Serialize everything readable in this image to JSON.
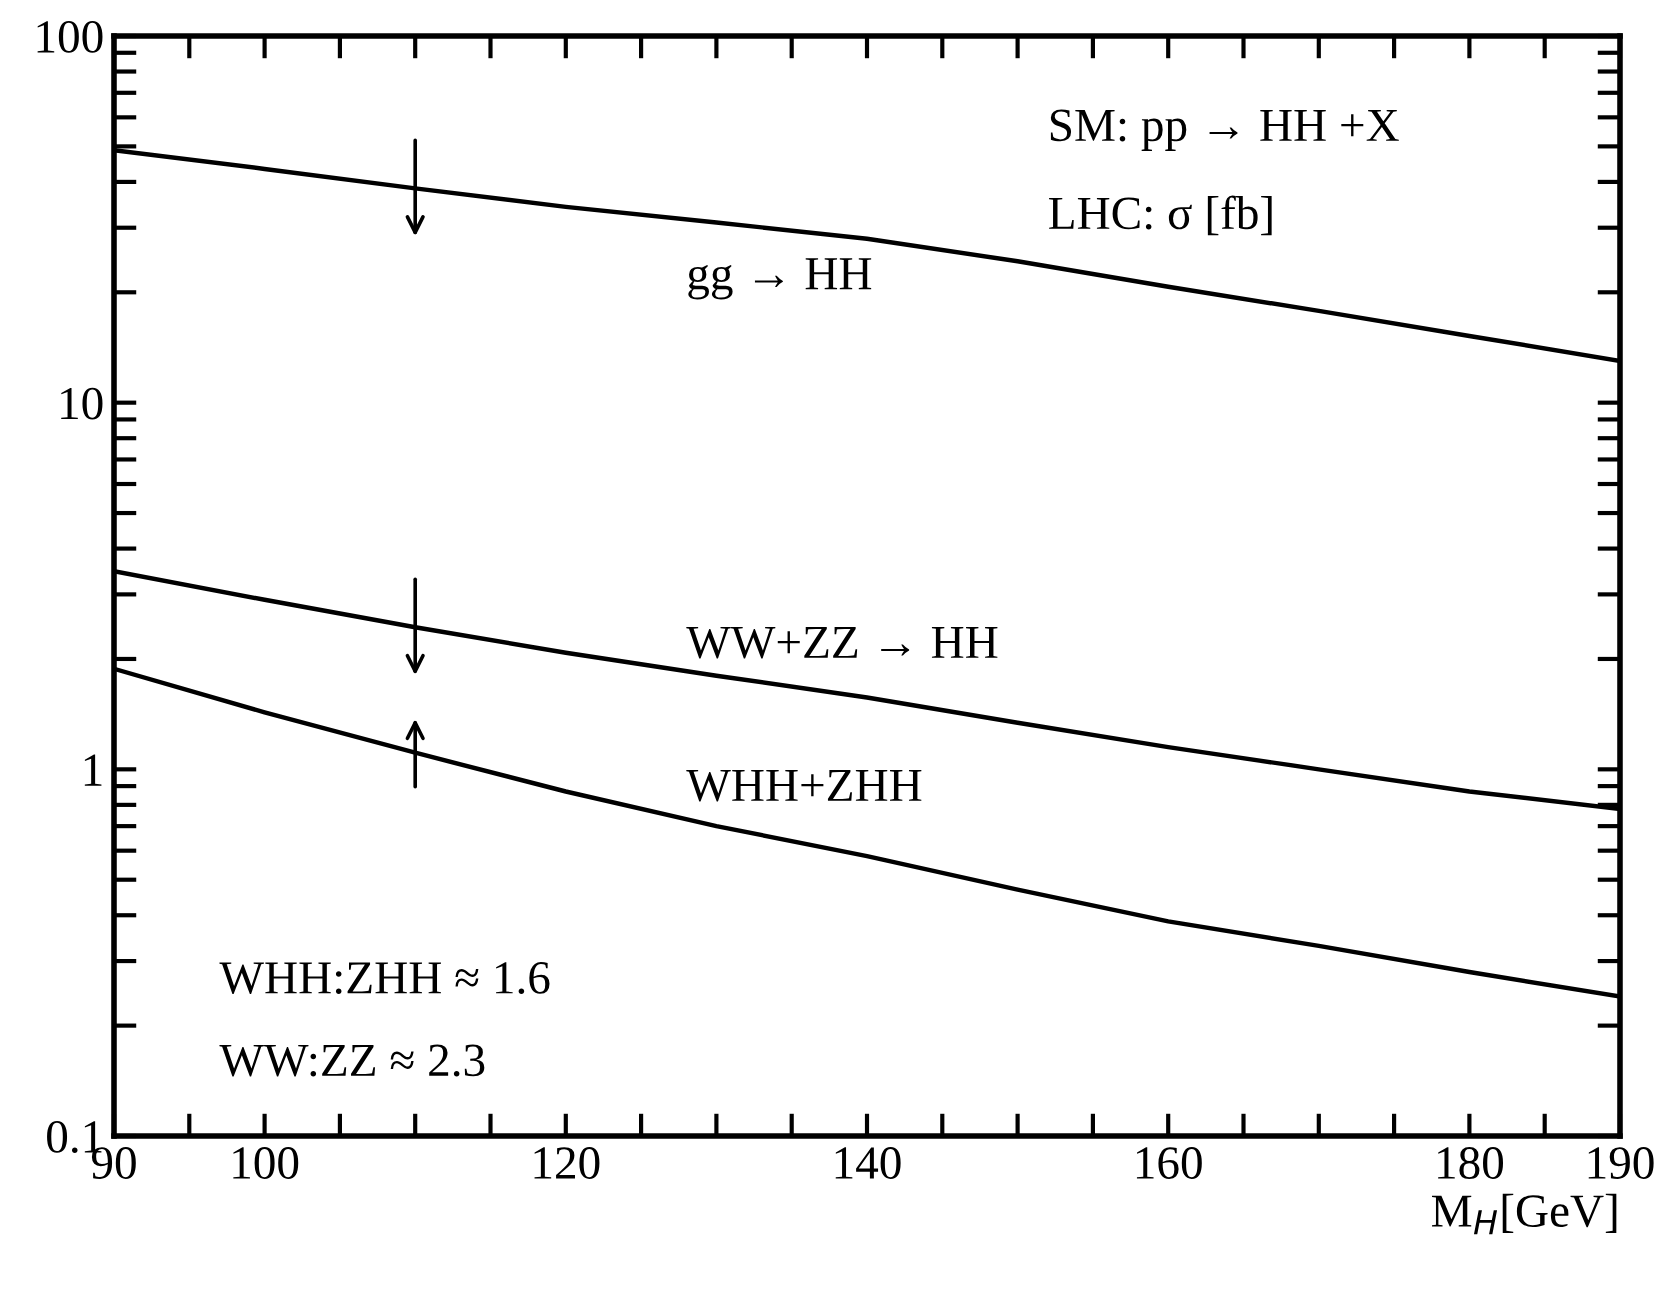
{
  "chart_data": {
    "type": "line",
    "xlabel": "M$_{H}$[GeV]",
    "series": [
      {
        "name": "gg → HH",
        "color": "#000000",
        "x": [
          90,
          100,
          110,
          120,
          130,
          140,
          150,
          160,
          170,
          180,
          190
        ],
        "values": [
          48.8,
          43.4,
          38.4,
          34.2,
          31.0,
          28.0,
          24.3,
          20.7,
          17.8,
          15.2,
          13.0
        ]
      },
      {
        "name": "WW+ZZ → HH",
        "color": "#000000",
        "x": [
          90,
          100,
          110,
          120,
          130,
          140,
          150,
          160,
          170,
          180,
          190
        ],
        "values": [
          3.47,
          2.9,
          2.44,
          2.08,
          1.8,
          1.57,
          1.34,
          1.15,
          1.0,
          0.87,
          0.78
        ]
      },
      {
        "name": "WHH+ZHH",
        "color": "#000000",
        "x": [
          90,
          100,
          110,
          120,
          130,
          140,
          150,
          160,
          170,
          180,
          190
        ],
        "values": [
          1.88,
          1.43,
          1.11,
          0.87,
          0.7,
          0.58,
          0.47,
          0.385,
          0.33,
          0.28,
          0.24
        ]
      }
    ],
    "log": "y",
    "xlim": [
      90,
      190
    ],
    "ylim": [
      0.1,
      100
    ],
    "xticks": [
      90,
      {
        "value": 95,
        "label": null
      },
      100,
      {
        "value": 105,
        "label": null
      },
      {
        "value": 110,
        "label": null
      },
      {
        "value": 115,
        "label": null
      },
      120,
      {
        "value": 125,
        "label": null
      },
      {
        "value": 130,
        "label": null
      },
      {
        "value": 135,
        "label": null
      },
      140,
      {
        "value": 145,
        "label": null
      },
      {
        "value": 150,
        "label": null
      },
      {
        "value": 155,
        "label": null
      },
      160,
      {
        "value": 165,
        "label": null
      },
      {
        "value": 170,
        "label": null
      },
      {
        "value": 175,
        "label": null
      },
      180,
      {
        "value": 185,
        "label": null
      },
      190
    ],
    "yticks": [
      0.1,
      {
        "value": 0.2,
        "label": null
      },
      {
        "value": 0.3,
        "label": null
      },
      {
        "value": 0.4,
        "label": null
      },
      {
        "value": 0.5,
        "label": null
      },
      {
        "value": 0.6,
        "label": null
      },
      {
        "value": 0.7,
        "label": null
      },
      {
        "value": 0.8,
        "label": null
      },
      {
        "value": 0.9,
        "label": null
      },
      1,
      {
        "value": 2,
        "label": null
      },
      {
        "value": 3,
        "label": null
      },
      {
        "value": 4,
        "label": null
      },
      {
        "value": 5,
        "label": null
      },
      {
        "value": 6,
        "label": null
      },
      {
        "value": 7,
        "label": null
      },
      {
        "value": 8,
        "label": null
      },
      {
        "value": 9,
        "label": null
      },
      10,
      {
        "value": 20,
        "label": null
      },
      {
        "value": 30,
        "label": null
      },
      {
        "value": 40,
        "label": null
      },
      {
        "value": 50,
        "label": null
      },
      {
        "value": 60,
        "label": null
      },
      {
        "value": 70,
        "label": null
      },
      {
        "value": 80,
        "label": null
      },
      {
        "value": 90,
        "label": null
      },
      100
    ],
    "annotations": [
      "SM: pp → HH +X",
      "LHC: σ [fb]",
      "WHH:ZHH ≈ 1.6",
      "WW:ZZ ≈ 2.3"
    ],
    "line_style": "solid",
    "marker": "none",
    "grid": false,
    "legend": false
  }
}
